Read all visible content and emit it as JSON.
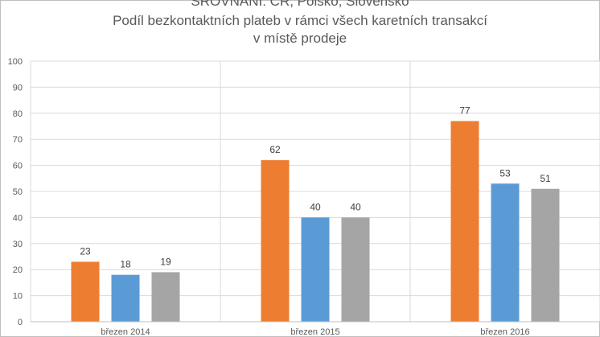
{
  "title": "SROVNÁNÍ: ČR, Polsko, Slovensko",
  "subtitle_line1": "Podíl bezkontaktních plateb v rámci všech karetních transakcí",
  "subtitle_line2": "v místě prodeje",
  "colors": [
    "#ed7d31",
    "#5b9bd5",
    "#a5a5a5"
  ],
  "chart_data": {
    "type": "bar",
    "title": "SROVNÁNÍ: ČR, Polsko, Slovensko",
    "subtitle": "Podíl bezkontaktních plateb v rámci všech karetních transakcí v místě prodeje",
    "categories": [
      "březen 2014",
      "březen 2015",
      "březen 2016"
    ],
    "series": [
      {
        "values": [
          23,
          62,
          77
        ]
      },
      {
        "values": [
          18,
          40,
          53
        ]
      },
      {
        "values": [
          19,
          40,
          51
        ]
      }
    ],
    "ylim": [
      0,
      100
    ],
    "yticks": [
      0,
      10,
      20,
      30,
      40,
      50,
      60,
      70,
      80,
      90,
      100
    ],
    "grid": true,
    "legend": "none",
    "data_labels": true
  }
}
